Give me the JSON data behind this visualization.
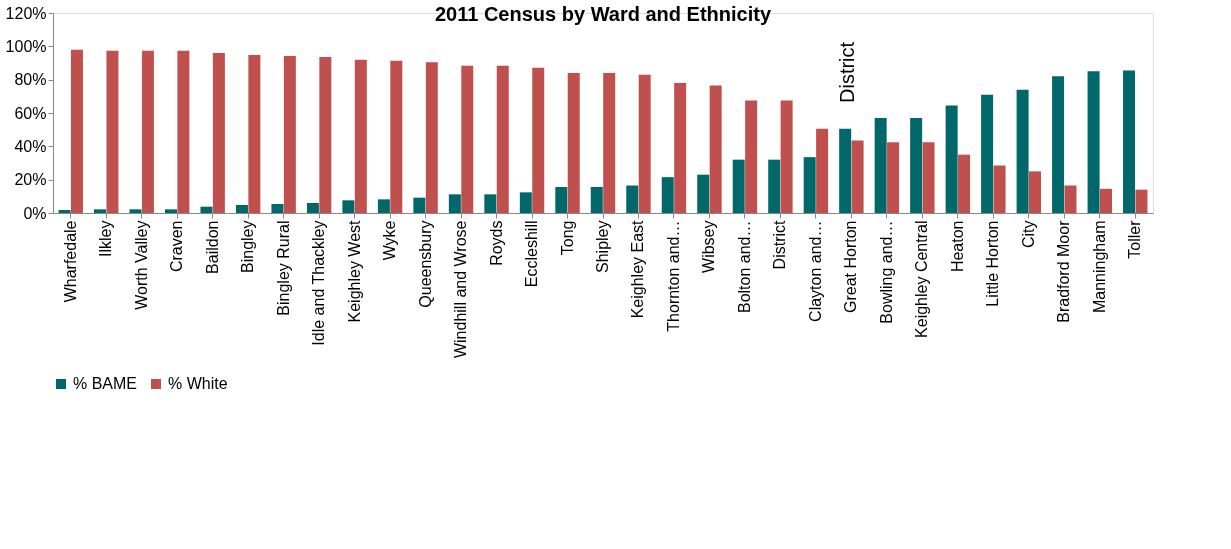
{
  "chart_data": {
    "type": "bar",
    "title": "2011 Census by Ward and Ethnicity",
    "categories": [
      "Wharfedale",
      "Ilkley",
      "Worth Valley",
      "Craven",
      "Baildon",
      "Bingley",
      "Bingley Rural",
      "Idle and Thackley",
      "Keighley West",
      "Wyke",
      "Queensbury",
      "Windhill and Wrose",
      "Royds",
      "Eccleshill",
      "Tong",
      "Shipley",
      "Keighley East",
      "Thornton and…",
      "Wibsey",
      "Bolton and…",
      "District",
      "Clayton and…",
      "Great Horton",
      "Bowling and…",
      "Keighley Central",
      "Heaton",
      "Little Horton",
      "City",
      "Bradford Moor",
      "Manningham",
      "Toller"
    ],
    "series": [
      {
        "name": "% BAME",
        "color": "#00676b",
        "values": [
          1.8,
          2.2,
          2.2,
          2.2,
          3.8,
          4.8,
          5.4,
          6,
          7.6,
          8.2,
          9.2,
          11.2,
          11.2,
          12.4,
          15.6,
          15.6,
          16.5,
          21.5,
          23,
          32,
          32,
          33.5,
          50.5,
          57,
          57,
          64.5,
          71,
          74,
          82,
          85,
          85.5
        ]
      },
      {
        "name": "% White",
        "color": "#c0504d",
        "values": [
          98,
          97.4,
          97.4,
          97.4,
          96,
          94.8,
          94.2,
          93.6,
          92,
          91.4,
          90.4,
          88.4,
          88.4,
          87.2,
          84,
          84,
          83,
          78,
          76.5,
          67.5,
          67.5,
          50.5,
          43.5,
          42.5,
          42.5,
          35,
          28.5,
          25,
          16.5,
          14.5,
          14
        ]
      }
    ],
    "ylim": [
      0,
      120
    ],
    "yticks": [
      {
        "value": 0,
        "label": "0%"
      },
      {
        "value": 20,
        "label": "20%"
      },
      {
        "value": 40,
        "label": "40%"
      },
      {
        "value": 60,
        "label": "60%"
      },
      {
        "value": 80,
        "label": "80%"
      },
      {
        "value": 100,
        "label": "100%"
      },
      {
        "value": 120,
        "label": "120%"
      }
    ],
    "legend": "bottom",
    "annotations": [
      "District"
    ]
  }
}
